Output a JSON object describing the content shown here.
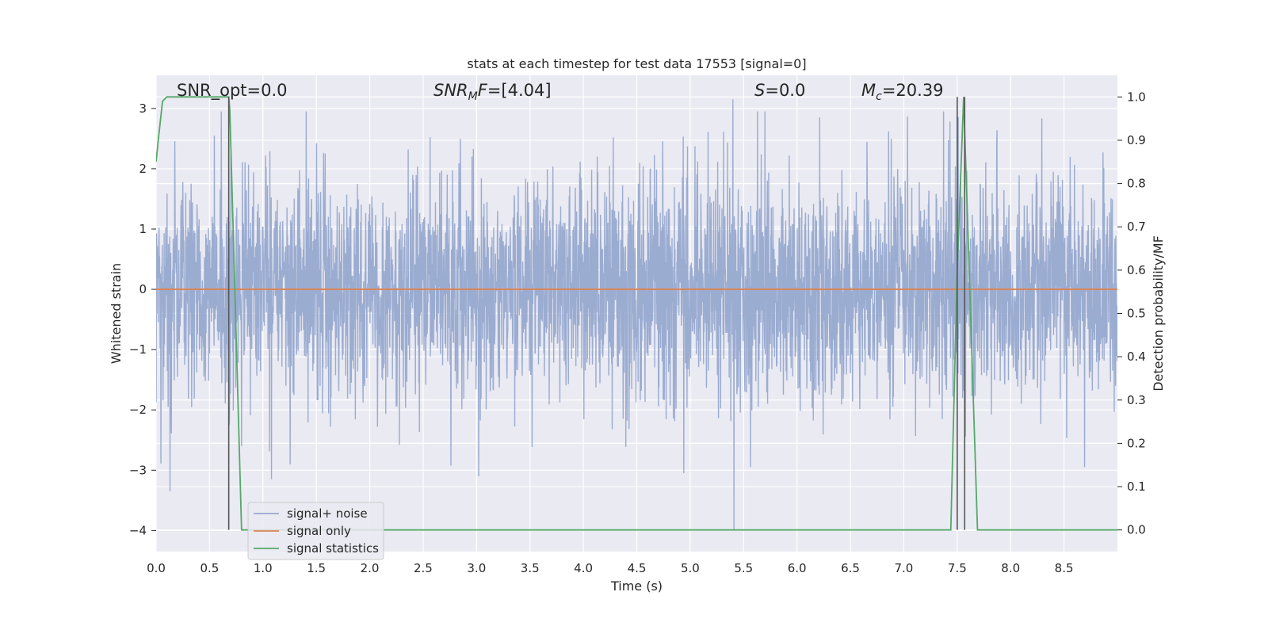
{
  "chart_data": {
    "type": "line",
    "title": "stats at each timestep for test data 17553 [signal=0]",
    "xlabel": "Time (s)",
    "ylabel": "Whitened strain",
    "y2label": "Detection probability/MF",
    "xlim": [
      0.0,
      9.0
    ],
    "ylim": [
      -4.35,
      3.55
    ],
    "y2lim": [
      -0.05,
      1.05
    ],
    "xticks": [
      0.0,
      0.5,
      1.0,
      1.5,
      2.0,
      2.5,
      3.0,
      3.5,
      4.0,
      4.5,
      5.0,
      5.5,
      6.0,
      6.5,
      7.0,
      7.5,
      8.0,
      8.5
    ],
    "xtick_labels": [
      "0.0",
      "0.5",
      "1.0",
      "1.5",
      "2.0",
      "2.5",
      "3.0",
      "3.5",
      "4.0",
      "4.5",
      "5.0",
      "5.5",
      "6.0",
      "6.5",
      "7.0",
      "7.5",
      "8.0",
      "8.5"
    ],
    "yticks": [
      3,
      2,
      1,
      0,
      -1,
      -2,
      -3,
      -4
    ],
    "ytick_labels": [
      "3",
      "2",
      "1",
      "0",
      "−1",
      "−2",
      "−3",
      "−4"
    ],
    "y2ticks": [
      1.0,
      0.9,
      0.8,
      0.7,
      0.6,
      0.5,
      0.4,
      0.3,
      0.2,
      0.1,
      0.0
    ],
    "y2tick_labels": [
      "1.0",
      "0.9",
      "0.8",
      "0.7",
      "0.6",
      "0.5",
      "0.4",
      "0.3",
      "0.2",
      "0.1",
      "0.0"
    ],
    "grid": true,
    "legend_position": "lower-left",
    "annotations": {
      "snr_opt": "SNR_opt=0.0",
      "snr_mf_main": "SNR",
      "snr_mf_sub": "M",
      "snr_mf_rest": "F",
      "snr_mf_value": "=[4.04]",
      "s_label": "S",
      "s_value": "=0.0",
      "mc_main": "M",
      "mc_sub": "c",
      "mc_value": "=20.39"
    },
    "series": [
      {
        "name": "signal+ noise",
        "color": "#97a9cf",
        "axis": "left",
        "kind": "noise",
        "envelope_typical": 1.8,
        "notable_spikes": [
          {
            "x": 0.13,
            "y": -3.35
          },
          {
            "x": 0.7,
            "y": 2.2
          },
          {
            "x": 1.08,
            "y": -3.15
          },
          {
            "x": 3.02,
            "y": -3.1
          },
          {
            "x": 4.94,
            "y": -3.05
          },
          {
            "x": 5.4,
            "y": 3.15
          },
          {
            "x": 5.41,
            "y": -4.0
          },
          {
            "x": 7.53,
            "y": 1.8
          },
          {
            "x": 7.55,
            "y": -1.8
          }
        ]
      },
      {
        "name": "signal only",
        "color": "#dd8452",
        "axis": "left",
        "x": [
          0.0,
          9.0
        ],
        "y": [
          0.0,
          0.0
        ]
      },
      {
        "name": "signal statistics",
        "color": "#55a868",
        "axis": "right",
        "x": [
          0.0,
          0.02,
          0.06,
          0.1,
          0.68,
          0.69,
          0.8,
          7.44,
          7.5,
          7.56,
          7.69,
          9.0
        ],
        "y": [
          0.85,
          0.9,
          0.99,
          1.0,
          1.0,
          0.97,
          0.0,
          0.0,
          0.6,
          1.0,
          0.0,
          0.0
        ]
      }
    ],
    "vertical_lines": [
      0.68,
      7.5,
      7.57
    ],
    "vertical_line_color": "#555555"
  }
}
